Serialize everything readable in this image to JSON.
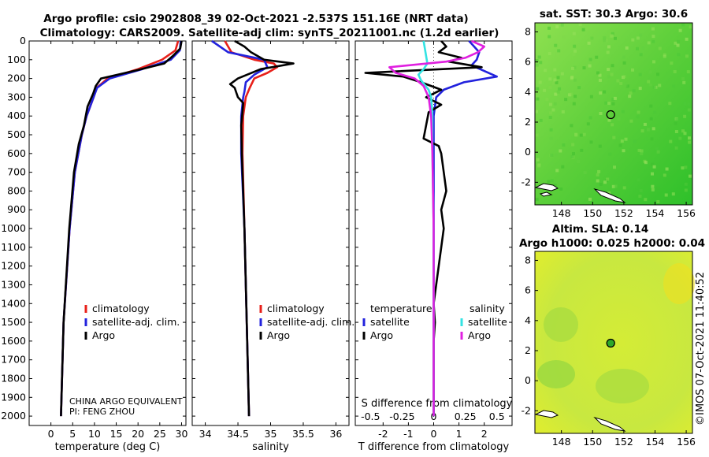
{
  "header": {
    "title_line1": "Argo profile: csio 2902808_39 02-Oct-2021 -2.537S 151.16E (NRT data)",
    "title_line2": "Climatology: CARS2009. Satellite-adj clim: synTS_20211001.nc (1.2d earlier)"
  },
  "colors": {
    "climatology": "#e8201a",
    "satellite": "#2222dd",
    "argo": "#000000",
    "sal_satellite": "#33e3e3",
    "sal_argo": "#e020e0"
  },
  "chart_data": [
    {
      "type": "line",
      "name": "temperature-profile",
      "xlabel": "temperature (deg C)",
      "ylabel": "",
      "xlim": [
        -5,
        31
      ],
      "ylim": [
        2050,
        0
      ],
      "xticks": [
        "0",
        "5",
        "10",
        "15",
        "20",
        "25",
        "30"
      ],
      "yticks": [
        "0",
        "100",
        "200",
        "300",
        "400",
        "500",
        "600",
        "700",
        "800",
        "900",
        "1000",
        "1100",
        "1200",
        "1300",
        "1400",
        "1500",
        "1600",
        "1700",
        "1800",
        "1900",
        "2000"
      ],
      "legend": [
        "climatology",
        "satellite-adj. clim.",
        "Argo"
      ],
      "notes": [
        "CHINA ARGO EQUIVALENT",
        "PI: FENG ZHOU"
      ],
      "series": [
        {
          "name": "climatology",
          "depth": [
            0,
            50,
            100,
            150,
            200,
            250,
            300,
            400,
            500,
            700,
            1000,
            1500,
            2000
          ],
          "values": [
            29.2,
            28.6,
            25.5,
            20.0,
            13.0,
            10.5,
            9.8,
            8.2,
            7.1,
            5.5,
            4.3,
            2.9,
            2.3
          ]
        },
        {
          "name": "satellite-adj. clim.",
          "depth": [
            0,
            50,
            100,
            150,
            200,
            250,
            300,
            400,
            500,
            700,
            1000,
            1500,
            2000
          ],
          "values": [
            29.8,
            29.6,
            27.5,
            21.0,
            13.5,
            10.6,
            9.8,
            8.2,
            7.1,
            5.5,
            4.3,
            2.9,
            2.3
          ]
        },
        {
          "name": "Argo",
          "depth": [
            0,
            40,
            80,
            120,
            160,
            200,
            240,
            280,
            350,
            450,
            550,
            700,
            1000,
            1500,
            2000
          ],
          "values": [
            30.0,
            29.7,
            28.0,
            26.0,
            19.0,
            11.5,
            10.3,
            9.7,
            8.4,
            7.6,
            6.4,
            5.3,
            4.2,
            2.9,
            2.3
          ]
        }
      ]
    },
    {
      "type": "line",
      "name": "salinity-profile",
      "xlabel": "salinity",
      "xlim": [
        33.8,
        36.2
      ],
      "ylim": [
        2050,
        0
      ],
      "xticks": [
        "34",
        "34.5",
        "35",
        "35.5",
        "36"
      ],
      "legend": [
        "climatology",
        "satellite-adj. clim.",
        "Argo"
      ],
      "series": [
        {
          "name": "climatology",
          "depth": [
            0,
            60,
            100,
            120,
            140,
            170,
            200,
            250,
            300,
            400,
            600,
            1000,
            2000
          ],
          "values": [
            34.3,
            34.4,
            34.75,
            35.05,
            35.1,
            34.95,
            34.75,
            34.68,
            34.62,
            34.58,
            34.57,
            34.6,
            34.67
          ]
        },
        {
          "name": "satellite-adj. clim.",
          "depth": [
            0,
            60,
            100,
            140,
            180,
            220,
            270,
            300,
            400,
            600,
            1000,
            2000
          ],
          "values": [
            34.1,
            34.35,
            34.9,
            34.95,
            34.75,
            34.62,
            34.6,
            34.58,
            34.55,
            34.55,
            34.6,
            34.67
          ]
        },
        {
          "name": "Argo",
          "depth": [
            0,
            30,
            60,
            100,
            120,
            150,
            200,
            230,
            250,
            300,
            330,
            380,
            450,
            600,
            1000,
            2000
          ],
          "values": [
            34.45,
            34.6,
            34.7,
            34.9,
            35.35,
            34.85,
            34.5,
            34.38,
            34.45,
            34.5,
            34.58,
            34.57,
            34.55,
            34.56,
            34.6,
            34.67
          ]
        }
      ]
    },
    {
      "type": "line",
      "name": "difference-profile",
      "xlabel": "T difference from climatology",
      "top_xlabel": "S difference from climatology",
      "xlim": [
        -3.1,
        3.1
      ],
      "ylim": [
        2050,
        0
      ],
      "xticks": [
        "-2",
        "-1",
        "0",
        "1",
        "2"
      ],
      "top_xticks": [
        "-0.5",
        "-0.25",
        "0",
        "0.25",
        "0.5"
      ],
      "legend_temperature_title": "temperature",
      "legend_salinity_title": "salinity",
      "legend": [
        "satellite",
        "Argo",
        "satellite",
        "Argo"
      ],
      "series": [
        {
          "name": "temperature satellite",
          "depth": [
            0,
            30,
            60,
            100,
            130,
            160,
            190,
            220,
            260,
            300,
            400,
            600,
            1000,
            1500,
            2000
          ],
          "values": [
            1.4,
            1.6,
            1.8,
            1.7,
            1.5,
            2.0,
            2.5,
            1.2,
            0.4,
            0.1,
            0.0,
            0.0,
            0.0,
            0.0,
            0.0
          ]
        },
        {
          "name": "temperature Argo",
          "depth": [
            0,
            30,
            60,
            90,
            110,
            140,
            170,
            190,
            220,
            260,
            300,
            340,
            380,
            450,
            520,
            560,
            600,
            700,
            800,
            900,
            1000,
            1100,
            1200,
            1300,
            1400,
            1500,
            1600,
            1800,
            2000
          ],
          "values": [
            0.3,
            0.5,
            0.2,
            1.1,
            0.6,
            1.9,
            -2.7,
            -1.2,
            -0.5,
            0.3,
            -0.3,
            0.3,
            -0.2,
            -0.3,
            -0.4,
            0.2,
            0.3,
            0.4,
            0.5,
            0.3,
            0.4,
            0.3,
            0.2,
            0.1,
            0.0,
            0.05,
            0.0,
            0.0,
            0.0
          ]
        },
        {
          "name": "salinity satellite",
          "depth": [
            0,
            40,
            80,
            120,
            150,
            180,
            210,
            260,
            300,
            400,
            600,
            1000,
            2000
          ],
          "values": [
            -0.08,
            -0.07,
            -0.06,
            -0.05,
            -0.08,
            -0.12,
            -0.1,
            -0.04,
            -0.02,
            -0.01,
            -0.01,
            0.0,
            0.0
          ]
        },
        {
          "name": "salinity Argo",
          "depth": [
            0,
            30,
            60,
            90,
            110,
            140,
            170,
            200,
            240,
            300,
            400,
            600,
            1000,
            2000
          ],
          "values": [
            0.3,
            0.4,
            0.35,
            0.25,
            0.1,
            -0.35,
            -0.3,
            -0.15,
            -0.08,
            -0.04,
            -0.02,
            -0.01,
            0.0,
            0.0
          ]
        }
      ]
    },
    {
      "type": "heatmap",
      "name": "sst-map",
      "title": "sat. SST: 30.3 Argo: 30.6",
      "xticks": [
        "148",
        "150",
        "152",
        "154",
        "156"
      ],
      "yticks": [
        "8",
        "6",
        "4",
        "2",
        "0",
        "-2"
      ],
      "xlim": [
        146.3,
        156.4
      ],
      "ylim": [
        -3.5,
        8.6
      ],
      "marker": {
        "lon": 151.16,
        "lat": 2.5
      }
    },
    {
      "type": "heatmap",
      "name": "sla-map",
      "title_line1": "Altim. SLA: 0.14",
      "title_line2": "Argo h1000: 0.025 h2000: 0.04",
      "xticks": [
        "148",
        "150",
        "152",
        "154",
        "156"
      ],
      "yticks": [
        "8",
        "6",
        "4",
        "2",
        "0",
        "-2"
      ],
      "xlim": [
        146.3,
        156.4
      ],
      "ylim": [
        -3.5,
        8.6
      ],
      "marker": {
        "lon": 151.16,
        "lat": 2.5
      }
    }
  ],
  "footer": {
    "stamp": "©IMOS 07-Oct-2021 11:40:52"
  }
}
